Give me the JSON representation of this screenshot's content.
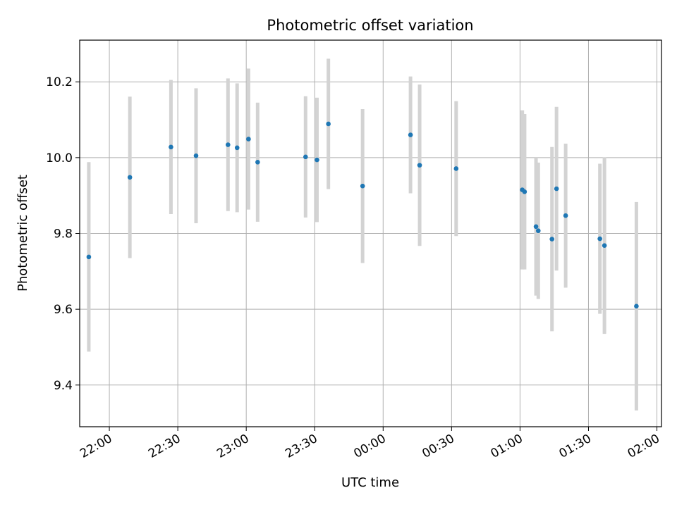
{
  "chart_data": {
    "type": "scatter",
    "title": "Photometric offset variation",
    "xlabel": "UTC time",
    "ylabel": "Photometric offset",
    "grid": true,
    "legend": "none",
    "marker_color": "#1f77b4",
    "errorbar_color": "#d3d3d3",
    "xlim": [
      "21:47",
      "02:02"
    ],
    "ylim": [
      9.29,
      10.31
    ],
    "xticks": [
      "22:00",
      "22:30",
      "23:00",
      "23:30",
      "00:00",
      "00:30",
      "01:00",
      "01:30",
      "02:00"
    ],
    "yticks": [
      "9.4",
      "9.6",
      "9.8",
      "10.0",
      "10.2"
    ],
    "points": [
      {
        "x": "21:51",
        "y": 9.738,
        "err": 0.25
      },
      {
        "x": "22:09",
        "y": 9.948,
        "err": 0.213
      },
      {
        "x": "22:27",
        "y": 10.028,
        "err": 0.177
      },
      {
        "x": "22:38",
        "y": 10.005,
        "err": 0.178
      },
      {
        "x": "22:52",
        "y": 10.034,
        "err": 0.175
      },
      {
        "x": "22:56",
        "y": 10.026,
        "err": 0.17
      },
      {
        "x": "23:01",
        "y": 10.049,
        "err": 0.186
      },
      {
        "x": "23:05",
        "y": 9.988,
        "err": 0.157
      },
      {
        "x": "23:26",
        "y": 10.002,
        "err": 0.16
      },
      {
        "x": "23:31",
        "y": 9.994,
        "err": 0.164
      },
      {
        "x": "23:36",
        "y": 10.089,
        "err": 0.172
      },
      {
        "x": "23:51",
        "y": 9.925,
        "err": 0.203
      },
      {
        "x": "00:12",
        "y": 10.06,
        "err": 0.154
      },
      {
        "x": "00:16",
        "y": 9.98,
        "err": 0.213
      },
      {
        "x": "00:32",
        "y": 9.971,
        "err": 0.178
      },
      {
        "x": "01:01",
        "y": 9.915,
        "err": 0.21
      },
      {
        "x": "01:02",
        "y": 9.91,
        "err": 0.205
      },
      {
        "x": "01:07",
        "y": 9.818,
        "err": 0.182
      },
      {
        "x": "01:08",
        "y": 9.807,
        "err": 0.18
      },
      {
        "x": "01:14",
        "y": 9.785,
        "err": 0.243
      },
      {
        "x": "01:16",
        "y": 9.918,
        "err": 0.216
      },
      {
        "x": "01:20",
        "y": 9.847,
        "err": 0.19
      },
      {
        "x": "01:35",
        "y": 9.786,
        "err": 0.198
      },
      {
        "x": "01:37",
        "y": 9.768,
        "err": 0.233
      },
      {
        "x": "01:51",
        "y": 9.608,
        "err": 0.275
      }
    ]
  }
}
